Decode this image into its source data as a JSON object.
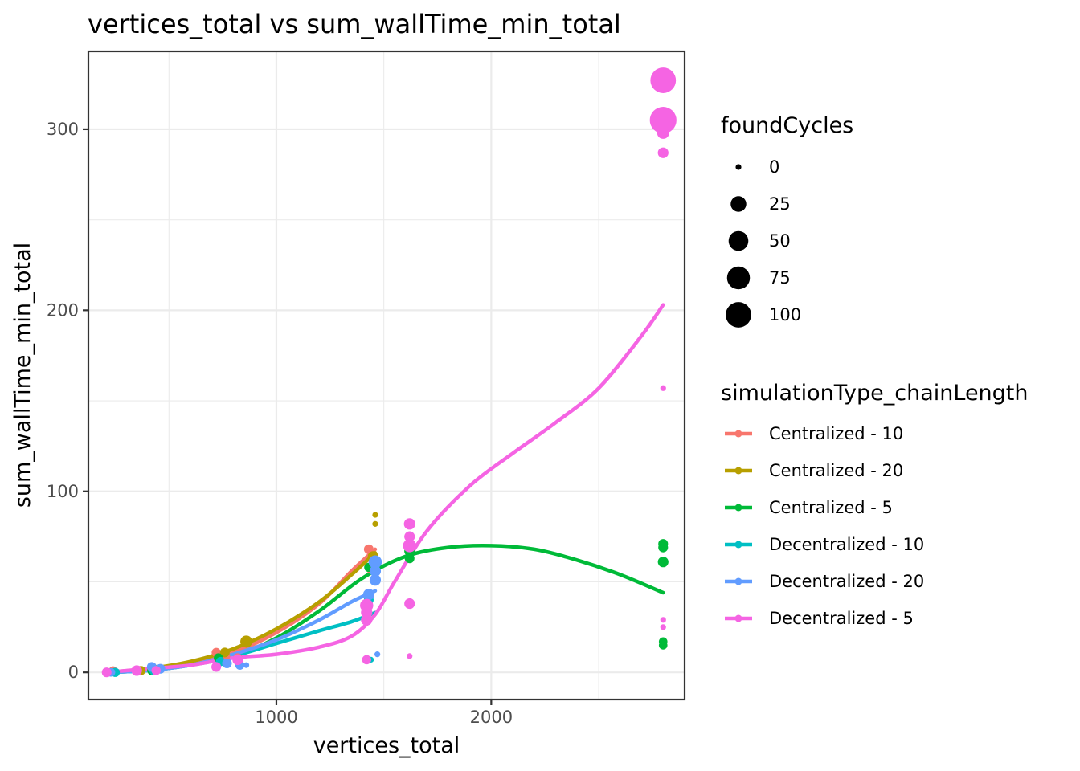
{
  "chart_data": {
    "type": "scatter",
    "title": "vertices_total  vs  sum_wallTime_min_total",
    "xlabel": "vertices_total",
    "ylabel": "sum_wallTime_min_total",
    "xlim": [
      125,
      2900
    ],
    "ylim": [
      -15,
      343
    ],
    "x_ticks": [
      1000,
      2000
    ],
    "y_ticks": [
      0,
      100,
      200,
      300
    ],
    "x_minor": [
      500,
      1500,
      2500
    ],
    "y_minor": [
      50,
      150,
      250
    ],
    "grid": true,
    "size_legend": {
      "title": "foundCycles",
      "breaks": [
        0,
        25,
        50,
        75,
        100
      ]
    },
    "color_legend": {
      "title": "simulationType_chainLength",
      "position": "right"
    },
    "series": [
      {
        "name": "Centralized - 10",
        "color": "#F8766D",
        "points": [
          {
            "x": 210,
            "y": 0,
            "s": 3
          },
          {
            "x": 240,
            "y": 1,
            "s": 2
          },
          {
            "x": 360,
            "y": 1,
            "s": 3
          },
          {
            "x": 420,
            "y": 2,
            "s": 4
          },
          {
            "x": 720,
            "y": 11,
            "s": 3
          },
          {
            "x": 760,
            "y": 9,
            "s": 6
          },
          {
            "x": 820,
            "y": 8,
            "s": 3
          },
          {
            "x": 1430,
            "y": 68,
            "s": 4
          },
          {
            "x": 1440,
            "y": 57,
            "s": 3
          }
        ],
        "fit": [
          [
            210,
            0
          ],
          [
            400,
            2
          ],
          [
            600,
            5
          ],
          [
            800,
            11
          ],
          [
            1000,
            22
          ],
          [
            1200,
            38
          ],
          [
            1350,
            56
          ],
          [
            1460,
            68
          ]
        ]
      },
      {
        "name": "Centralized - 20",
        "color": "#B79F00",
        "points": [
          {
            "x": 210,
            "y": 0,
            "s": 3
          },
          {
            "x": 370,
            "y": 1,
            "s": 3
          },
          {
            "x": 430,
            "y": 2,
            "s": 3
          },
          {
            "x": 760,
            "y": 11,
            "s": 4
          },
          {
            "x": 860,
            "y": 17,
            "s": 10
          },
          {
            "x": 1450,
            "y": 64,
            "s": 6
          },
          {
            "x": 1460,
            "y": 87,
            "s": 0
          },
          {
            "x": 1460,
            "y": 82,
            "s": 0
          }
        ],
        "fit": [
          [
            210,
            0
          ],
          [
            400,
            2
          ],
          [
            600,
            6
          ],
          [
            800,
            13
          ],
          [
            1000,
            24
          ],
          [
            1200,
            39
          ],
          [
            1350,
            54
          ],
          [
            1460,
            66
          ]
        ]
      },
      {
        "name": "Centralized - 5",
        "color": "#00BA38",
        "points": [
          {
            "x": 210,
            "y": 0,
            "s": 2
          },
          {
            "x": 420,
            "y": 1,
            "s": 3
          },
          {
            "x": 730,
            "y": 8,
            "s": 3
          },
          {
            "x": 1430,
            "y": 58,
            "s": 3
          },
          {
            "x": 1620,
            "y": 81,
            "s": 0
          },
          {
            "x": 1620,
            "y": 67,
            "s": 6
          },
          {
            "x": 1620,
            "y": 63,
            "s": 4
          },
          {
            "x": 2800,
            "y": 71,
            "s": 4
          },
          {
            "x": 2800,
            "y": 69,
            "s": 4
          },
          {
            "x": 2800,
            "y": 61,
            "s": 6
          },
          {
            "x": 2800,
            "y": 17,
            "s": 2
          },
          {
            "x": 2800,
            "y": 15,
            "s": 2
          }
        ],
        "fit": [
          [
            210,
            0
          ],
          [
            400,
            1
          ],
          [
            600,
            4
          ],
          [
            800,
            9
          ],
          [
            1000,
            19
          ],
          [
            1200,
            34
          ],
          [
            1400,
            52
          ],
          [
            1600,
            64
          ],
          [
            1800,
            69
          ],
          [
            2000,
            70
          ],
          [
            2200,
            68
          ],
          [
            2400,
            62
          ],
          [
            2600,
            54
          ],
          [
            2800,
            44
          ]
        ]
      },
      {
        "name": "Decentralized - 10",
        "color": "#00BFC4",
        "points": [
          {
            "x": 210,
            "y": 0,
            "s": 3
          },
          {
            "x": 250,
            "y": 0,
            "s": 3
          },
          {
            "x": 430,
            "y": 1,
            "s": 3
          },
          {
            "x": 740,
            "y": 6,
            "s": 3
          },
          {
            "x": 1430,
            "y": 40,
            "s": 4
          },
          {
            "x": 1440,
            "y": 7,
            "s": 0
          }
        ],
        "fit": [
          [
            210,
            0
          ],
          [
            400,
            1
          ],
          [
            600,
            4
          ],
          [
            800,
            9
          ],
          [
            1000,
            16
          ],
          [
            1200,
            23
          ],
          [
            1350,
            28
          ],
          [
            1460,
            33
          ]
        ]
      },
      {
        "name": "Decentralized - 20",
        "color": "#619CFF",
        "points": [
          {
            "x": 230,
            "y": 0,
            "s": 2
          },
          {
            "x": 420,
            "y": 3,
            "s": 4
          },
          {
            "x": 460,
            "y": 2,
            "s": 4
          },
          {
            "x": 770,
            "y": 5,
            "s": 4
          },
          {
            "x": 830,
            "y": 4,
            "s": 3
          },
          {
            "x": 860,
            "y": 4,
            "s": 0
          },
          {
            "x": 1430,
            "y": 43,
            "s": 8
          },
          {
            "x": 1460,
            "y": 61,
            "s": 14
          },
          {
            "x": 1460,
            "y": 56,
            "s": 8
          },
          {
            "x": 1460,
            "y": 51,
            "s": 8
          },
          {
            "x": 1470,
            "y": 10,
            "s": 0
          }
        ],
        "fit": [
          [
            210,
            0
          ],
          [
            400,
            1
          ],
          [
            600,
            4
          ],
          [
            800,
            10
          ],
          [
            1000,
            18
          ],
          [
            1200,
            29
          ],
          [
            1350,
            39
          ],
          [
            1460,
            45
          ]
        ]
      },
      {
        "name": "Decentralized - 5",
        "color": "#F564E3",
        "points": [
          {
            "x": 210,
            "y": 0,
            "s": 4
          },
          {
            "x": 350,
            "y": 1,
            "s": 6
          },
          {
            "x": 440,
            "y": 1,
            "s": 3
          },
          {
            "x": 720,
            "y": 3,
            "s": 4
          },
          {
            "x": 820,
            "y": 7,
            "s": 6
          },
          {
            "x": 1420,
            "y": 37,
            "s": 14
          },
          {
            "x": 1420,
            "y": 33,
            "s": 8
          },
          {
            "x": 1420,
            "y": 29,
            "s": 8
          },
          {
            "x": 1420,
            "y": 7,
            "s": 3
          },
          {
            "x": 1620,
            "y": 82,
            "s": 8
          },
          {
            "x": 1620,
            "y": 75,
            "s": 6
          },
          {
            "x": 1620,
            "y": 70,
            "s": 14
          },
          {
            "x": 1620,
            "y": 38,
            "s": 6
          },
          {
            "x": 1620,
            "y": 9,
            "s": 0
          },
          {
            "x": 2800,
            "y": 327,
            "s": 100
          },
          {
            "x": 2800,
            "y": 305,
            "s": 112
          },
          {
            "x": 2800,
            "y": 298,
            "s": 10
          },
          {
            "x": 2800,
            "y": 287,
            "s": 6
          },
          {
            "x": 2800,
            "y": 157,
            "s": 0
          },
          {
            "x": 2800,
            "y": 29,
            "s": 0
          },
          {
            "x": 2800,
            "y": 25,
            "s": 0
          }
        ],
        "fit": [
          [
            210,
            0
          ],
          [
            400,
            2
          ],
          [
            600,
            4
          ],
          [
            800,
            8
          ],
          [
            1000,
            10
          ],
          [
            1200,
            14
          ],
          [
            1350,
            20
          ],
          [
            1460,
            32
          ],
          [
            1550,
            50
          ],
          [
            1700,
            78
          ],
          [
            1900,
            103
          ],
          [
            2100,
            121
          ],
          [
            2300,
            138
          ],
          [
            2500,
            157
          ],
          [
            2700,
            186
          ],
          [
            2800,
            203
          ]
        ]
      }
    ]
  }
}
